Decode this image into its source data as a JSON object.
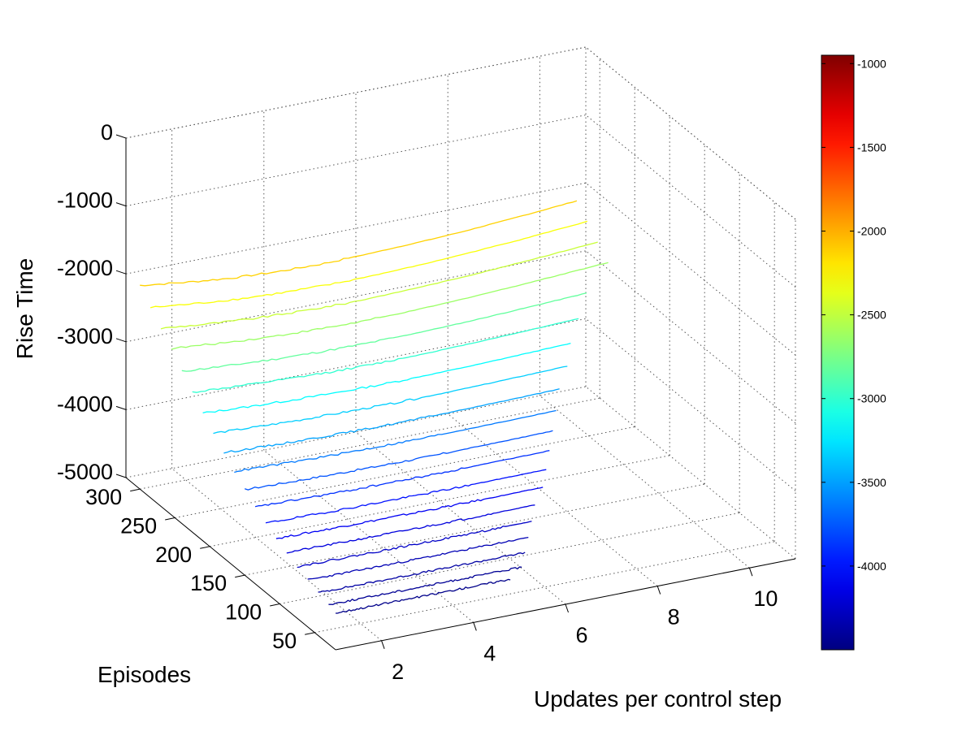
{
  "chart_data": {
    "type": "line",
    "subtype": "3d-waterfall",
    "xlabel": "Updates per control step",
    "ylabel": "Episodes",
    "zlabel": "Rise Time",
    "x_ticks": [
      2,
      4,
      6,
      8,
      10
    ],
    "y_ticks": [
      50,
      100,
      150,
      200,
      250,
      300
    ],
    "z_ticks": [
      0,
      -1000,
      -2000,
      -3000,
      -4000,
      -5000
    ],
    "xlim": [
      1,
      11
    ],
    "ylim": [
      20,
      320
    ],
    "zlim": [
      -5000,
      0
    ],
    "grid": true,
    "colormap": "jet",
    "colorbar": {
      "range": [
        -4500,
        -950
      ],
      "ticks": [
        -1000,
        -1500,
        -2000,
        -2500,
        -3000,
        -3500,
        -4000
      ],
      "position": "right"
    },
    "x_end_per_series": [
      10.5,
      10.5,
      10.5,
      10.5,
      9.8,
      9.4,
      9.0,
      8.7,
      8.3,
      8.0,
      7.7,
      7.4,
      7.1,
      6.8,
      6.4,
      6.1,
      5.8,
      5.5,
      5.2,
      4.8
    ],
    "series": [
      {
        "episode": 300,
        "values": [
          -2000,
          -2090,
          -2160,
          -2200,
          -2215,
          -2200,
          -2180,
          -2150,
          -2105,
          -2055,
          -2000
        ]
      },
      {
        "episode": 285,
        "values": [
          -2200,
          -2275,
          -2335,
          -2370,
          -2385,
          -2375,
          -2355,
          -2320,
          -2280,
          -2230,
          -2180
        ]
      },
      {
        "episode": 270,
        "values": [
          -2380,
          -2450,
          -2505,
          -2535,
          -2550,
          -2540,
          -2520,
          -2490,
          -2450,
          -2405,
          -2360
        ]
      },
      {
        "episode": 255,
        "values": [
          -2550,
          -2610,
          -2660,
          -2690,
          -2705,
          -2700,
          -2680,
          -2650,
          -2615,
          -2575,
          -2535
        ]
      },
      {
        "episode": 240,
        "values": [
          -2760,
          -2810,
          -2850,
          -2875,
          -2885,
          -2880,
          -2865,
          -2840,
          -2810,
          -2780,
          -2750
        ]
      },
      {
        "episode": 225,
        "values": [
          -2940,
          -2985,
          -3020,
          -3045,
          -3055,
          -3050,
          -3035,
          -3015,
          -2990,
          -2965,
          -2940
        ]
      },
      {
        "episode": 210,
        "values": [
          -3120,
          -3160,
          -3190,
          -3210,
          -3220,
          -3215,
          -3205,
          -3185,
          -3165,
          -3145,
          -3125
        ]
      },
      {
        "episode": 195,
        "values": [
          -3290,
          -3325,
          -3350,
          -3365,
          -3375,
          -3370,
          -3360,
          -3345,
          -3330,
          -3310,
          -3295
        ]
      },
      {
        "episode": 180,
        "values": [
          -3450,
          -3480,
          -3500,
          -3515,
          -3520,
          -3515,
          -3505,
          -3495,
          -3480,
          -3465,
          -3450
        ]
      },
      {
        "episode": 165,
        "values": [
          -3600,
          -3625,
          -3645,
          -3655,
          -3660,
          -3655,
          -3650,
          -3640,
          -3625,
          -3615,
          -3600
        ]
      },
      {
        "episode": 150,
        "values": [
          -3740,
          -3760,
          -3775,
          -3785,
          -3790,
          -3785,
          -3780,
          -3770,
          -3760,
          -3750,
          -3740
        ]
      },
      {
        "episode": 135,
        "values": [
          -3870,
          -3885,
          -3900,
          -3905,
          -3910,
          -3905,
          -3900,
          -3890,
          -3885,
          -3875,
          -3870
        ]
      },
      {
        "episode": 120,
        "values": [
          -3980,
          -3995,
          -4005,
          -4010,
          -4015,
          -4012,
          -4008,
          -4000,
          -3995,
          -3988,
          -3980
        ]
      },
      {
        "episode": 105,
        "values": [
          -4080,
          -4092,
          -4100,
          -4105,
          -4108,
          -4106,
          -4102,
          -4096,
          -4090,
          -4085,
          -4080
        ]
      },
      {
        "episode": 90,
        "values": [
          -4160,
          -4170,
          -4178,
          -4182,
          -4185,
          -4183,
          -4180,
          -4175,
          -4170,
          -4165,
          -4160
        ]
      },
      {
        "episode": 75,
        "values": [
          -4240,
          -4248,
          -4254,
          -4258,
          -4260,
          -4258,
          -4256,
          -4252,
          -4248,
          -4244,
          -4240
        ]
      },
      {
        "episode": 60,
        "values": [
          -4310,
          -4316,
          -4320,
          -4323,
          -4325,
          -4324,
          -4322,
          -4319,
          -4316,
          -4313,
          -4310
        ]
      },
      {
        "episode": 45,
        "values": [
          -4370,
          -4375,
          -4378,
          -4380,
          -4382,
          -4381,
          -4380,
          -4378,
          -4375,
          -4373,
          -4370
        ]
      },
      {
        "episode": 30,
        "values": [
          -4420,
          -4424,
          -4427,
          -4429,
          -4430,
          -4430,
          -4429,
          -4427,
          -4425,
          -4423,
          -4420
        ]
      },
      {
        "episode": 20,
        "values": [
          -4460,
          -4463,
          -4465,
          -4467,
          -4468,
          -4468,
          -4467,
          -4466,
          -4464,
          -4462,
          -4460
        ]
      }
    ]
  }
}
